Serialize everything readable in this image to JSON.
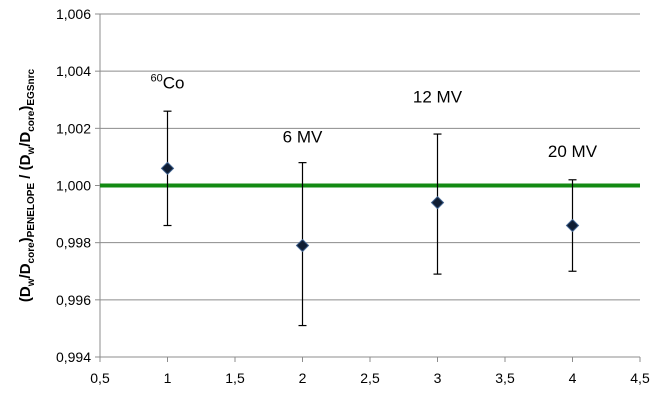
{
  "chart_data": {
    "type": "scatter",
    "title": "",
    "xlabel": "",
    "ylabel": {
      "parts": [
        {
          "t": "(D",
          "sub": false
        },
        {
          "t": "w",
          "sub": true
        },
        {
          "t": "/D",
          "sub": false
        },
        {
          "t": "core",
          "sub": true
        },
        {
          "t": ")",
          "sub": false
        },
        {
          "t": "PENELOPE",
          "sub": true
        },
        {
          "t": " / (D",
          "sub": false
        },
        {
          "t": "w",
          "sub": true
        },
        {
          "t": "/D",
          "sub": false
        },
        {
          "t": "core",
          "sub": true
        },
        {
          "t": ")",
          "sub": false
        },
        {
          "t": "EGSnrc",
          "sub": true
        }
      ]
    },
    "xlim": [
      0.5,
      4.5
    ],
    "ylim": [
      0.994,
      1.006
    ],
    "x_ticks": [
      "0,5",
      "1",
      "1,5",
      "2",
      "2,5",
      "3",
      "3,5",
      "4",
      "4,5"
    ],
    "y_ticks": [
      "0,994",
      "0,996",
      "0,998",
      "1,000",
      "1,002",
      "1,004",
      "1,006"
    ],
    "grid": "horizontal",
    "reference_line": {
      "y": 1.0,
      "color": "#138a13"
    },
    "series": [
      {
        "marker": "diamond",
        "marker_color": "#0f1d33",
        "points": [
          {
            "x": 1,
            "y": 1.0006,
            "err_low": 0.9986,
            "err_high": 1.0026
          },
          {
            "x": 2,
            "y": 0.9979,
            "err_low": 0.9951,
            "err_high": 1.0008
          },
          {
            "x": 3,
            "y": 0.9994,
            "err_low": 0.9969,
            "err_high": 1.0018
          },
          {
            "x": 4,
            "y": 0.9986,
            "err_low": 0.997,
            "err_high": 1.0002
          }
        ]
      }
    ],
    "annotations": [
      {
        "sup": "60",
        "text": "Co",
        "x": 1,
        "y": 1.0034
      },
      {
        "sup": "",
        "text": "6 MV",
        "x": 2,
        "y": 1.0015
      },
      {
        "sup": "",
        "text": "12 MV",
        "x": 3,
        "y": 1.0029
      },
      {
        "sup": "",
        "text": "20 MV",
        "x": 4,
        "y": 1.001
      }
    ]
  }
}
